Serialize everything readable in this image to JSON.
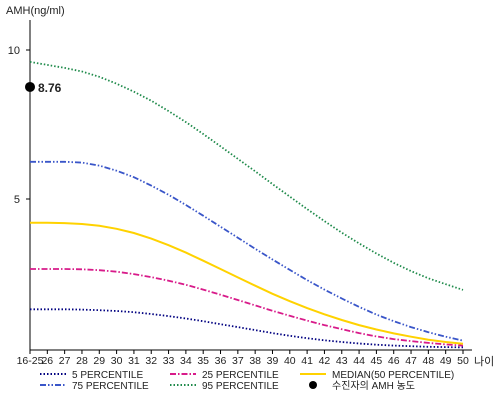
{
  "chart_data": {
    "type": "line",
    "ylabel": "AMH(ng/ml)",
    "xlabel": "나이",
    "yticks": [
      "10",
      "5"
    ],
    "ylim": [
      0,
      11
    ],
    "categories": [
      "16-25",
      "26",
      "27",
      "28",
      "29",
      "30",
      "31",
      "32",
      "33",
      "34",
      "35",
      "36",
      "37",
      "38",
      "39",
      "40",
      "41",
      "42",
      "43",
      "44",
      "45",
      "46",
      "47",
      "48",
      "49",
      "50"
    ],
    "grid": false,
    "legend_position": "bottom",
    "series": [
      {
        "name": "5 PERCENTILE",
        "color": "#000080",
        "style": "dotted",
        "values": [
          1.3,
          1.3,
          1.3,
          1.29,
          1.27,
          1.24,
          1.2,
          1.14,
          1.07,
          0.99,
          0.9,
          0.8,
          0.7,
          0.6,
          0.5,
          0.41,
          0.33,
          0.26,
          0.2,
          0.15,
          0.11,
          0.08,
          0.06,
          0.04,
          0.03,
          0.02
        ]
      },
      {
        "name": "25 PERCENTILE",
        "color": "#d81b8a",
        "style": "dashdot",
        "values": [
          2.65,
          2.65,
          2.65,
          2.64,
          2.61,
          2.56,
          2.48,
          2.38,
          2.26,
          2.12,
          1.96,
          1.79,
          1.61,
          1.43,
          1.25,
          1.08,
          0.92,
          0.77,
          0.63,
          0.5,
          0.39,
          0.3,
          0.23,
          0.17,
          0.12,
          0.08
        ]
      },
      {
        "name": "MEDIAN(50 PERCENTILE)",
        "color": "#ffd200",
        "style": "solid",
        "values": [
          4.2,
          4.2,
          4.19,
          4.16,
          4.1,
          4.0,
          3.86,
          3.67,
          3.45,
          3.2,
          2.93,
          2.65,
          2.37,
          2.09,
          1.82,
          1.57,
          1.34,
          1.13,
          0.94,
          0.77,
          0.62,
          0.49,
          0.38,
          0.28,
          0.2,
          0.14
        ]
      },
      {
        "name": "75 PERCENTILE",
        "color": "#3a56c9",
        "style": "dashdotdot",
        "values": [
          6.25,
          6.25,
          6.25,
          6.22,
          6.12,
          5.95,
          5.73,
          5.45,
          5.14,
          4.8,
          4.44,
          4.07,
          3.7,
          3.33,
          2.97,
          2.62,
          2.28,
          1.96,
          1.66,
          1.38,
          1.12,
          0.9,
          0.7,
          0.53,
          0.38,
          0.25
        ]
      },
      {
        "name": "95 PERCENTILE",
        "color": "#1e8a4a",
        "style": "dotted",
        "values": [
          9.6,
          9.5,
          9.4,
          9.28,
          9.1,
          8.87,
          8.6,
          8.3,
          7.95,
          7.58,
          7.18,
          6.77,
          6.35,
          5.93,
          5.5,
          5.08,
          4.66,
          4.26,
          3.87,
          3.51,
          3.17,
          2.86,
          2.58,
          2.34,
          2.14,
          1.95
        ]
      }
    ],
    "marker": {
      "name": "수진자의 AMH 농도",
      "x": "16-25",
      "y": 8.76,
      "label": "8.76",
      "color": "#000000"
    }
  }
}
